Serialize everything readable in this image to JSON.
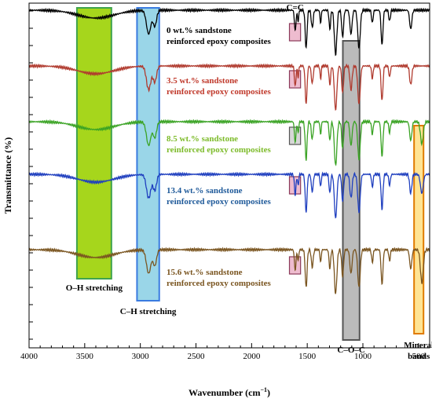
{
  "chart_data": {
    "type": "line",
    "xlabel": "Wavenumber (cm",
    "xlabel_sup": "−1",
    "xlabel_close": ")",
    "ylabel": "Transmittance (%)",
    "xlim": [
      4000,
      400
    ],
    "x_ticks": [
      4000,
      3500,
      3000,
      2500,
      2000,
      1500,
      1000,
      500
    ],
    "grid": false,
    "series": [
      {
        "name": "0 wt.% sandstone reinforced epoxy composites",
        "label_lines": [
          "0 wt.% sandstone",
          "reinforced epoxy composites"
        ],
        "color": "#000000",
        "label_color": "#000000",
        "offset": 0
      },
      {
        "name": "3.5 wt.% sandstone reinforced epoxy composites",
        "label_lines": [
          "3.5 wt.% sandstone",
          "reinforced epoxy composites"
        ],
        "color": "#b03a2e",
        "label_color": "#c0392b",
        "offset": 1
      },
      {
        "name": "8.5 wt.% sandstone reinforced epoxy composites",
        "label_lines": [
          "8.5 wt.% sandstone",
          "reinforced epoxy composites"
        ],
        "color": "#3aa324",
        "label_color": "#7dbb2a",
        "offset": 2
      },
      {
        "name": "13.4 wt.% sandstone reinforced epoxy composites",
        "label_lines": [
          "13.4 wt.% sandstone",
          "reinforced epoxy composites"
        ],
        "color": "#1f3fbf",
        "label_color": "#1f5a9a",
        "offset": 3
      },
      {
        "name": "15.6 wt.% sandstone reinforced epoxy composites",
        "label_lines": [
          "15.6 wt.% sandstone",
          "reinforced epoxy composites"
        ],
        "color": "#7a5520",
        "label_color": "#7a5520",
        "offset": 4
      }
    ],
    "bands": [
      {
        "name": "O–H stretching",
        "label_lines": [
          "O–H stretching"
        ],
        "x_from": 3570,
        "x_to": 3260,
        "fill": "#a6d61c",
        "stroke": "#3fa34d",
        "opacity": 1,
        "label_pos": "below"
      },
      {
        "name": "C–H stretching",
        "label_lines": [
          "C–H stretching"
        ],
        "x_from": 3030,
        "x_to": 2830,
        "fill": "#8fd1e6",
        "stroke": "#3a7be0",
        "opacity": 0.9,
        "label_pos": "below"
      },
      {
        "name": "C–O–C",
        "label_lines": [
          "C–O–C"
        ],
        "x_from": 1180,
        "x_to": 1030,
        "fill": "#9e9e9e",
        "stroke": "#555555",
        "opacity": 0.7,
        "label_pos": "below"
      },
      {
        "name": "Mineral bands",
        "label_lines": [
          "Mineral",
          "bands"
        ],
        "x_from": 540,
        "x_to": 455,
        "fill": "#ffd966",
        "stroke": "#e07b00",
        "opacity": 0.7,
        "label_pos": "below"
      }
    ],
    "cc_label": "C=C",
    "cc_x_from": 1660,
    "cc_x_to": 1560
  }
}
